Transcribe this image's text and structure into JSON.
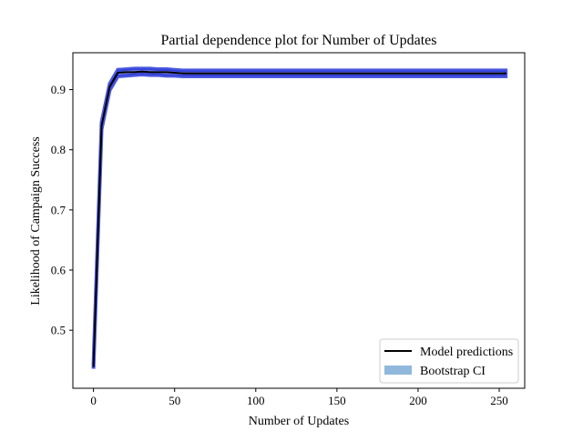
{
  "chart_data": {
    "type": "line",
    "title": "Partial dependence plot for Number of Updates",
    "xlabel": "Number of Updates",
    "ylabel": "Likelihood of Campaign Success",
    "xlim": [
      -12.7,
      265.7
    ],
    "ylim": [
      0.4035,
      0.9613
    ],
    "xticks": [
      0,
      50,
      100,
      150,
      200,
      250
    ],
    "xtick_labels": [
      "0",
      "50",
      "100",
      "150",
      "200",
      "250"
    ],
    "yticks": [
      0.5,
      0.6,
      0.7,
      0.8,
      0.9
    ],
    "ytick_labels": [
      "0.5",
      "0.6",
      "0.7",
      "0.8",
      "0.9"
    ],
    "grid": false,
    "legend_position": "lower-right",
    "series": [
      {
        "name": "Model predictions",
        "role": "line",
        "x": [
          0,
          2,
          5,
          10,
          15,
          20,
          25,
          30,
          35,
          40,
          45,
          50,
          55,
          60,
          70,
          80,
          100,
          150,
          200,
          254
        ],
        "y": [
          0.44,
          0.6,
          0.84,
          0.905,
          0.928,
          0.929,
          0.929,
          0.93,
          0.929,
          0.929,
          0.929,
          0.928,
          0.927,
          0.927,
          0.927,
          0.927,
          0.927,
          0.927,
          0.927,
          0.927
        ]
      },
      {
        "name": "Bootstrap CI",
        "role": "band",
        "x": [
          0,
          2,
          5,
          10,
          15,
          20,
          25,
          30,
          35,
          40,
          45,
          50,
          55,
          60,
          70,
          80,
          100,
          150,
          200,
          254
        ],
        "lower": [
          0.436,
          0.595,
          0.834,
          0.899,
          0.922,
          0.923,
          0.924,
          0.925,
          0.924,
          0.924,
          0.923,
          0.923,
          0.922,
          0.922,
          0.922,
          0.922,
          0.922,
          0.922,
          0.922,
          0.922
        ],
        "upper": [
          0.445,
          0.605,
          0.846,
          0.91,
          0.933,
          0.934,
          0.935,
          0.935,
          0.935,
          0.934,
          0.934,
          0.933,
          0.932,
          0.932,
          0.932,
          0.932,
          0.932,
          0.932,
          0.932,
          0.932
        ]
      }
    ],
    "colors": {
      "line": "#000000",
      "band": "#1f2fd6",
      "legend_band": "#8fb8dc"
    }
  }
}
